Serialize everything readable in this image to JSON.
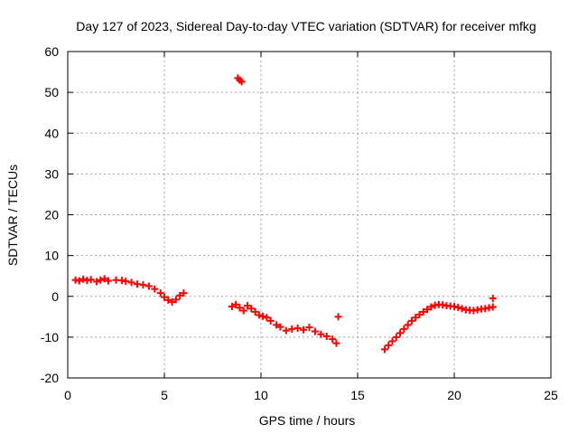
{
  "chart_data": {
    "type": "scatter",
    "title": "Day 127 of 2023, Sidereal Day-to-day VTEC variation (SDTVAR) for receiver mfkg",
    "xlabel": "GPS time / hours",
    "ylabel": "SDTVAR / TECUs",
    "xlim": [
      0,
      25
    ],
    "ylim": [
      -20,
      60
    ],
    "xticks": [
      0,
      5,
      10,
      15,
      20,
      25
    ],
    "yticks": [
      -20,
      -10,
      0,
      10,
      20,
      30,
      40,
      50,
      60
    ],
    "grid": true,
    "marker": "plus",
    "color": "#ff0000",
    "series": [
      {
        "name": "SDTVAR",
        "points": [
          [
            0.4,
            4.0
          ],
          [
            0.6,
            3.8
          ],
          [
            0.8,
            4.2
          ],
          [
            1.0,
            3.9
          ],
          [
            1.2,
            4.1
          ],
          [
            1.5,
            3.6
          ],
          [
            1.7,
            4.0
          ],
          [
            1.9,
            4.3
          ],
          [
            2.1,
            3.8
          ],
          [
            2.5,
            4.0
          ],
          [
            2.8,
            3.9
          ],
          [
            3.0,
            3.7
          ],
          [
            3.3,
            3.4
          ],
          [
            3.6,
            3.0
          ],
          [
            3.9,
            2.8
          ],
          [
            4.2,
            2.5
          ],
          [
            4.5,
            1.8
          ],
          [
            4.8,
            0.8
          ],
          [
            5.0,
            -0.2
          ],
          [
            5.2,
            -0.9
          ],
          [
            5.4,
            -1.4
          ],
          [
            5.6,
            -0.8
          ],
          [
            5.8,
            0.2
          ],
          [
            6.0,
            0.8
          ],
          [
            8.8,
            53.5
          ],
          [
            8.9,
            53.0
          ],
          [
            9.0,
            52.6
          ],
          [
            8.5,
            -2.5
          ],
          [
            8.7,
            -2.0
          ],
          [
            8.9,
            -2.8
          ],
          [
            9.1,
            -3.5
          ],
          [
            9.3,
            -2.3
          ],
          [
            9.5,
            -3.0
          ],
          [
            9.7,
            -3.8
          ],
          [
            9.9,
            -4.6
          ],
          [
            10.1,
            -4.9
          ],
          [
            10.3,
            -5.2
          ],
          [
            10.5,
            -6.0
          ],
          [
            10.8,
            -7.0
          ],
          [
            11.0,
            -7.5
          ],
          [
            11.3,
            -8.4
          ],
          [
            11.6,
            -8.0
          ],
          [
            11.9,
            -7.8
          ],
          [
            12.2,
            -8.2
          ],
          [
            12.5,
            -7.6
          ],
          [
            12.8,
            -8.6
          ],
          [
            13.1,
            -9.3
          ],
          [
            13.4,
            -9.8
          ],
          [
            13.7,
            -10.5
          ],
          [
            13.9,
            -11.5
          ],
          [
            14.0,
            -5.0
          ],
          [
            16.4,
            -13.0
          ],
          [
            16.6,
            -12.0
          ],
          [
            16.8,
            -11.0
          ],
          [
            17.0,
            -10.0
          ],
          [
            17.2,
            -9.0
          ],
          [
            17.4,
            -8.0
          ],
          [
            17.6,
            -7.0
          ],
          [
            17.8,
            -6.0
          ],
          [
            18.0,
            -5.2
          ],
          [
            18.2,
            -4.5
          ],
          [
            18.4,
            -3.8
          ],
          [
            18.6,
            -3.2
          ],
          [
            18.8,
            -2.6
          ],
          [
            19.0,
            -2.2
          ],
          [
            19.2,
            -2.0
          ],
          [
            19.4,
            -2.1
          ],
          [
            19.6,
            -2.3
          ],
          [
            19.8,
            -2.4
          ],
          [
            20.0,
            -2.5
          ],
          [
            20.2,
            -2.7
          ],
          [
            20.4,
            -3.0
          ],
          [
            20.6,
            -3.3
          ],
          [
            20.8,
            -3.4
          ],
          [
            21.0,
            -3.5
          ],
          [
            21.2,
            -3.3
          ],
          [
            21.4,
            -3.1
          ],
          [
            21.6,
            -3.0
          ],
          [
            21.8,
            -2.8
          ],
          [
            22.0,
            -2.6
          ],
          [
            22.0,
            -0.5
          ]
        ]
      }
    ]
  }
}
